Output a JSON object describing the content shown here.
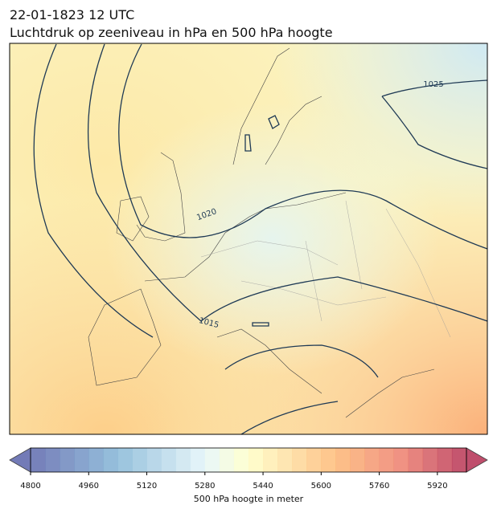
{
  "header": {
    "date": "22-01-1823 12 UTC",
    "title": "Luchtdruk op zeeniveau in hPa en 500 hPa hoogte"
  },
  "map": {
    "isobar_labels": [
      1025,
      1020,
      1015
    ]
  },
  "colorbar": {
    "lim": [
      4800,
      6000
    ],
    "step": 40,
    "ticks": [
      4800,
      4960,
      5120,
      5280,
      5440,
      5600,
      5760,
      5920
    ],
    "label": "500 hPa hoogte in meter"
  }
}
